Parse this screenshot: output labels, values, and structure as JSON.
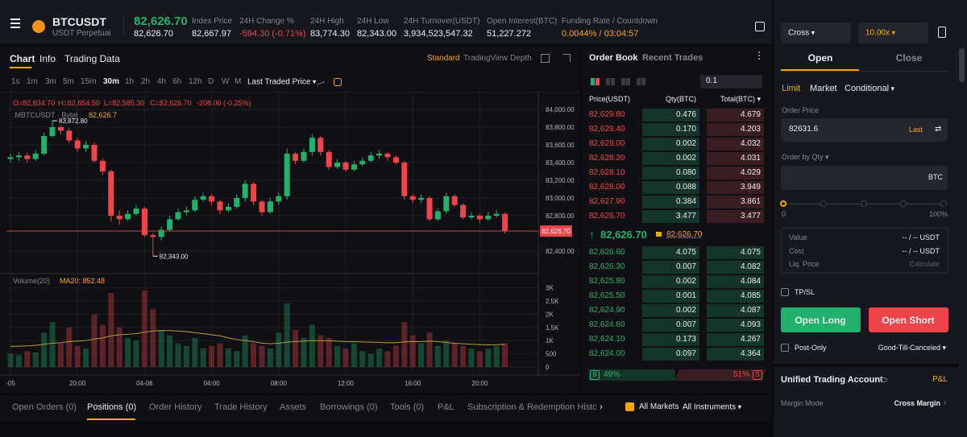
{
  "header": {
    "symbol": "BTCUSDT",
    "contract": "USDT Perpetual",
    "price": "82,626.70",
    "mark": "82,626.70",
    "stats": [
      {
        "label": "Index Price",
        "value": "82,667.97"
      },
      {
        "label": "24H Change %",
        "value": "-594.30 (-0.71%)"
      },
      {
        "label": "24H High",
        "value": "83,774.30"
      },
      {
        "label": "24H Low",
        "value": "82,343.00"
      },
      {
        "label": "24H Turnover(USDT)",
        "value": "3,934,523,547.32"
      },
      {
        "label": "Open Interest(BTC)",
        "value": "51,227.272"
      },
      {
        "label": "Funding Rate / Countdown",
        "value": "0.0044% / 03:04:57"
      }
    ]
  },
  "chart": {
    "type": "candlestick",
    "tabs": [
      "Chart",
      "Info",
      "Trading Data"
    ],
    "views": [
      "Standard",
      "TradingView",
      "Depth"
    ],
    "intervals": [
      "1s",
      "1m",
      "3m",
      "5m",
      "15m",
      "30m",
      "1h",
      "2h",
      "4h",
      "6h",
      "12h",
      "D",
      "W",
      "M"
    ],
    "price_source": "Last Traded Price",
    "ohlc": {
      "open": "O=82,834.70",
      "high": "H=82,854.50",
      "low": "L=82,585.30",
      "close": "C=82,626.70",
      "change": "-208.00 (-0.25%)"
    },
    "index_line": {
      "name": ".MBTCUSDT · Bybit",
      "value": "82,626.7"
    },
    "annotations": {
      "high": "83,872.80",
      "low": "82,343.00"
    },
    "last_price_label": "82,626.70",
    "volume_label": "Volume(20)",
    "ma_label": "MA20: 852.48",
    "categories": [
      "-05",
      null,
      null,
      null,
      null,
      null,
      null,
      null,
      "20:00",
      null,
      null,
      null,
      null,
      null,
      null,
      null,
      "04-06",
      null,
      null,
      null,
      null,
      null,
      null,
      null,
      "04:00",
      null,
      null,
      null,
      null,
      null,
      null,
      null,
      "08:00",
      null,
      null,
      null,
      null,
      null,
      null,
      null,
      "12:00",
      null,
      null,
      null,
      null,
      null,
      null,
      null,
      "16:00",
      null,
      null,
      null,
      null,
      null,
      null,
      null,
      "20:00",
      null,
      null,
      null
    ],
    "open": [
      83440,
      83460,
      83480,
      83440,
      83500,
      83700,
      83800,
      83760,
      83650,
      83560,
      83600,
      83420,
      83300,
      82800,
      82760,
      82820,
      82880,
      82580,
      82560,
      82640,
      82760,
      82840,
      82860,
      82980,
      83020,
      82960,
      82860,
      82900,
      83000,
      83160,
      82960,
      82840,
      82960,
      83020,
      83500,
      83420,
      83520,
      83680,
      83520,
      83350,
      83400,
      83320,
      83380,
      83420,
      83480,
      83500,
      83460,
      83400,
      83020,
      82980,
      83000,
      82760,
      82850,
      83020,
      82920,
      82780,
      82800,
      82760,
      82800,
      82820
    ],
    "high": [
      83500,
      83520,
      83510,
      83540,
      83740,
      83872,
      83820,
      83790,
      83680,
      83640,
      83630,
      83450,
      83320,
      82860,
      82860,
      82920,
      82900,
      82600,
      82680,
      82800,
      82880,
      82900,
      83020,
      83060,
      83040,
      82980,
      82940,
      83040,
      83200,
      83180,
      82980,
      83000,
      83060,
      83560,
      83520,
      83560,
      83720,
      83700,
      83540,
      83440,
      83420,
      83420,
      83460,
      83520,
      83540,
      83520,
      83480,
      83420,
      83040,
      83040,
      83020,
      82880,
      83060,
      83040,
      82940,
      82840,
      82820,
      82840,
      82860,
      82840
    ],
    "low": [
      83400,
      83420,
      83400,
      83420,
      83480,
      83680,
      83720,
      83620,
      83520,
      83520,
      83400,
      83260,
      82740,
      82700,
      82740,
      82800,
      82560,
      82343,
      82520,
      82620,
      82740,
      82800,
      82840,
      82960,
      82920,
      82820,
      82840,
      82880,
      82960,
      82920,
      82800,
      82820,
      82920,
      82980,
      83380,
      83400,
      83480,
      83480,
      83320,
      83330,
      83300,
      83300,
      83360,
      83400,
      83440,
      83420,
      83380,
      82980,
      82940,
      82940,
      82740,
      82740,
      82820,
      82900,
      82760,
      82760,
      82720,
      82740,
      82780,
      82600
    ],
    "close": [
      83460,
      83480,
      83440,
      83500,
      83700,
      83800,
      83760,
      83650,
      83560,
      83600,
      83420,
      83300,
      82800,
      82760,
      82820,
      82880,
      82580,
      82560,
      82640,
      82760,
      82840,
      82860,
      82980,
      83020,
      82960,
      82860,
      82900,
      83000,
      83160,
      82960,
      82840,
      82960,
      83020,
      83500,
      83420,
      83520,
      83680,
      83520,
      83350,
      83400,
      83320,
      83380,
      83420,
      83480,
      83500,
      83460,
      83400,
      83020,
      82980,
      83000,
      82760,
      82850,
      83020,
      82920,
      82780,
      82800,
      82760,
      82800,
      82820,
      82626.7
    ],
    "volume": [
      500,
      450,
      600,
      550,
      1300,
      1700,
      900,
      1500,
      800,
      700,
      2000,
      1600,
      2800,
      1500,
      1100,
      1000,
      2900,
      2200,
      1400,
      1200,
      900,
      800,
      1100,
      700,
      800,
      900,
      700,
      600,
      1200,
      900,
      800,
      700,
      1300,
      2400,
      1400,
      1100,
      1600,
      1200,
      1100,
      800,
      700,
      900,
      600,
      500,
      700,
      600,
      800,
      1700,
      1200,
      900,
      1300,
      800,
      1000,
      900,
      800,
      700,
      600,
      700,
      800,
      900
    ],
    "ma20": [
      780,
      790,
      800,
      820,
      860,
      900,
      920,
      960,
      980,
      1000,
      1060,
      1100,
      1180,
      1220,
      1240,
      1260,
      1320,
      1360,
      1380,
      1380,
      1360,
      1340,
      1300,
      1260,
      1220,
      1180,
      1100,
      1040,
      1000,
      960,
      900,
      880,
      900,
      940,
      960,
      980,
      1000,
      1000,
      990,
      980,
      960,
      960,
      950,
      940,
      930,
      920,
      920,
      950,
      960,
      960,
      980,
      960,
      930,
      900,
      880,
      860,
      850,
      840,
      845,
      852.48
    ],
    "ylim": [
      82200,
      84100
    ],
    "yticks": [
      {
        "value": 84000,
        "label": "84,000.00"
      },
      {
        "value": 83800,
        "label": "83,800.00"
      },
      {
        "value": 83600,
        "label": "83,600.00"
      },
      {
        "value": 83400,
        "label": "83,400.00"
      },
      {
        "value": 83200,
        "label": "83,200.00"
      },
      {
        "value": 83000,
        "label": "83,000.00"
      },
      {
        "value": 82800,
        "label": "82,800.00"
      },
      {
        "value": 82400,
        "label": "82,400.00"
      }
    ],
    "vlim": [
      0,
      3200
    ],
    "vticks": [
      {
        "value": 3000,
        "label": "3K"
      },
      {
        "value": 2500,
        "label": "2.5K"
      },
      {
        "value": 2000,
        "label": "2K"
      },
      {
        "value": 1500,
        "label": "1.5K"
      },
      {
        "value": 1000,
        "label": "1K"
      },
      500,
      0
    ],
    "up_color": "#20b26c",
    "down_color": "#ef454a",
    "ma_color": "#b89a3a"
  },
  "order_book": {
    "tabs": [
      "Order Book",
      "Recent Trades"
    ],
    "precision": "0.1",
    "columns": [
      "Price(USDT)",
      "Qty(BTC)",
      "Total(BTC)"
    ],
    "asks": [
      [
        "82,629.80",
        "0.476",
        "4.679"
      ],
      [
        "82,629.40",
        "0.170",
        "4.203"
      ],
      [
        "82,629.00",
        "0.002",
        "4.032"
      ],
      [
        "82,628.20",
        "0.002",
        "4.031"
      ],
      [
        "82,628.10",
        "0.080",
        "4.029"
      ],
      [
        "82,628.00",
        "0.088",
        "3.949"
      ],
      [
        "82,627.90",
        "0.384",
        "3.861"
      ],
      [
        "82,626.70",
        "3.477",
        "3.477"
      ]
    ],
    "last": "82,626.70",
    "mark": "82,626.70",
    "bids": [
      [
        "82,626.60",
        "4.075",
        "4.075"
      ],
      [
        "82,626.30",
        "0.007",
        "4.082"
      ],
      [
        "82,625.80",
        "0.002",
        "4.084"
      ],
      [
        "82,625.50",
        "0.001",
        "4.085"
      ],
      [
        "82,624.90",
        "0.002",
        "4.087"
      ],
      [
        "82,624.60",
        "0.007",
        "4.093"
      ],
      [
        "82,624.10",
        "0.173",
        "4.267"
      ],
      [
        "82,624.00",
        "0.097",
        "4.364"
      ]
    ],
    "buy_tag": "B",
    "buy_ratio": "49%",
    "sell_ratio": "51%",
    "sell_tag": "S"
  },
  "order_panel": {
    "margin": "Cross",
    "leverage": "10.00x",
    "tabs": [
      "Open",
      "Close"
    ],
    "order_types": [
      "Limit",
      "Market",
      "Conditional"
    ],
    "price_label": "Order Price",
    "price": "82631.6",
    "price_ref": "Last",
    "qty_label": "Order by Qty",
    "qty_unit": "BTC",
    "slider_min": "0",
    "slider_max": "100%",
    "summary": [
      {
        "label": "Value",
        "value": "-- / -- USDT"
      },
      {
        "label": "Cost",
        "value": "-- / -- USDT"
      },
      {
        "label": "Liq. Price",
        "value": "Calculate"
      }
    ],
    "tpsl": "TP/SL",
    "long": "Open Long",
    "short": "Open Short",
    "post_only": "Post-Only",
    "tif": "Good-Till-Canceled",
    "account": "Unified Trading Account",
    "pnl": "P&L",
    "margin_mode_label": "Margin Mode",
    "margin_mode": "Cross Margin"
  },
  "bottom_tabs": {
    "tabs": [
      "Open Orders (0)",
      "Positions (0)",
      "Order History",
      "Trade History",
      "Assets",
      "Borrowings (0)",
      "Tools (0)",
      "P&L",
      "Subscription & Redemption Histo"
    ],
    "all_markets": "All Markets",
    "instruments": "All Instruments"
  }
}
